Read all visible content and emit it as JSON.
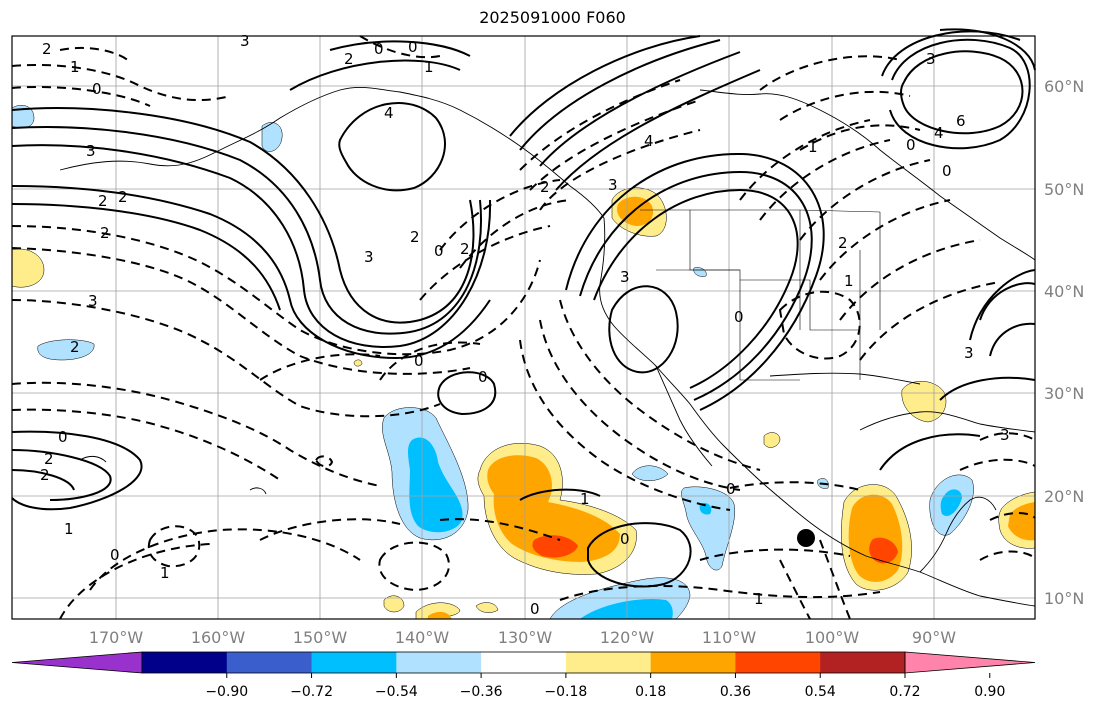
{
  "title": "2025091000 F060",
  "colors": {
    "grid": "#a0a0a0",
    "coast": "#000000",
    "contour": "#000000"
  },
  "lat_labels": [
    "60°N",
    "50°N",
    "40°N",
    "30°N",
    "20°N",
    "10°N"
  ],
  "lon_labels": [
    "170°W",
    "160°W",
    "150°W",
    "140°W",
    "130°W",
    "120°W",
    "110°W",
    "100°W",
    "90°W"
  ],
  "colorbar": {
    "colors": [
      "#9932cc",
      "#00008b",
      "#3a5fcd",
      "#00bfff",
      "#b0e2ff",
      "#ffffff",
      "#ffec8b",
      "#ffa500",
      "#ff4500",
      "#b22222",
      "#ff83aa"
    ],
    "tick_labels": [
      "−0.90",
      "−0.72",
      "−0.54",
      "−0.36",
      "−0.18",
      "0.18",
      "0.36",
      "0.54",
      "0.72",
      "0.90"
    ]
  },
  "contour_labels": [
    "2",
    "1",
    "0",
    "3",
    "2",
    "0",
    "0",
    "1",
    "4",
    "3",
    "6",
    "3",
    "2",
    "2",
    "4",
    "3",
    "2",
    "2",
    "0",
    "2",
    "3",
    "0",
    "3",
    "2",
    "4",
    "1",
    "2",
    "0",
    "0",
    "0",
    "2",
    "3",
    "1",
    "0",
    "0",
    "1",
    "1",
    "0",
    "0",
    "2",
    "0",
    "1",
    "2",
    "1",
    "0",
    "3",
    "3"
  ],
  "marker": {
    "label": "black dot"
  }
}
